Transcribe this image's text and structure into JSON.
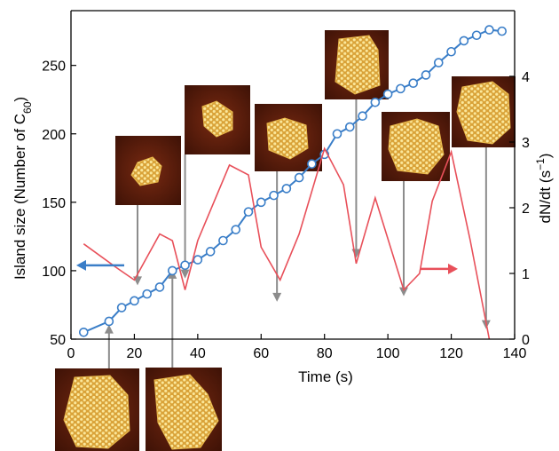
{
  "chart_data": {
    "type": "line",
    "xlabel": "Time (s)",
    "ylabel_left": "Island size (Number of C60)",
    "ylabel_right": "dN/dt (s−1)",
    "xlim": [
      0,
      140
    ],
    "ylim_left": [
      50,
      290
    ],
    "ylim_right": [
      0,
      5.0
    ],
    "x_ticks": [
      0,
      20,
      40,
      60,
      80,
      100,
      120,
      140
    ],
    "y_ticks_left": [
      50,
      100,
      150,
      200,
      250
    ],
    "y_ticks_right": [
      0,
      1,
      2,
      3,
      4
    ],
    "grid": false,
    "series": [
      {
        "axis": "left",
        "color": "#3a7ec8",
        "marker": "open-circle",
        "x": [
          4,
          12,
          16,
          20,
          24,
          28,
          32,
          36,
          40,
          44,
          48,
          52,
          56,
          60,
          64,
          68,
          72,
          76,
          80,
          84,
          88,
          92,
          96,
          100,
          104,
          108,
          112,
          116,
          120,
          124,
          128,
          132,
          136
        ],
        "y": [
          55,
          63,
          73,
          78,
          83,
          88,
          100,
          104,
          108,
          114,
          122,
          130,
          143,
          150,
          155,
          160,
          168,
          178,
          185,
          200,
          205,
          213,
          223,
          229,
          233,
          237,
          243,
          252,
          260,
          268,
          272,
          276,
          275
        ]
      },
      {
        "axis": "right",
        "color": "#e8505a",
        "marker": "none",
        "x": [
          4,
          14,
          20,
          28,
          32,
          36,
          40,
          50,
          56,
          60,
          66,
          72,
          80,
          86,
          90,
          96,
          105,
          110,
          114,
          120,
          126,
          132
        ],
        "y": [
          1.45,
          1.1,
          0.9,
          1.6,
          1.5,
          0.75,
          1.5,
          2.65,
          2.5,
          1.4,
          0.9,
          1.6,
          2.9,
          2.35,
          1.15,
          2.15,
          0.75,
          1.0,
          2.1,
          2.85,
          1.5,
          0.0
        ]
      }
    ],
    "annotations": [
      {
        "type": "arrow",
        "direction": "left",
        "color": "#3a7ec8",
        "meaning": "points to left axis (island size)"
      },
      {
        "type": "arrow",
        "direction": "right",
        "color": "#e8505a",
        "meaning": "points to right axis (dN/dt)"
      }
    ],
    "inset_images": [
      {
        "description": "STM image of C60 island",
        "time_marker": 21
      },
      {
        "description": "STM image of C60 island",
        "time_marker": 36
      },
      {
        "description": "STM image of C60 island",
        "time_marker": 65
      },
      {
        "description": "STM image of C60 island",
        "time_marker": 90
      },
      {
        "description": "STM image of C60 island",
        "time_marker": 105
      },
      {
        "description": "STM image of C60 island",
        "time_marker": 131
      },
      {
        "description": "STM image of C60 island",
        "time_marker": 12
      },
      {
        "description": "STM image of C60 island",
        "time_marker": 32
      }
    ],
    "colors": {
      "blue": "#3a7ec8",
      "red": "#e8505a",
      "arrow_gray": "#8c8c8c",
      "stm_dark": "#5a1a0a",
      "stm_island": "#e8b84a"
    }
  }
}
